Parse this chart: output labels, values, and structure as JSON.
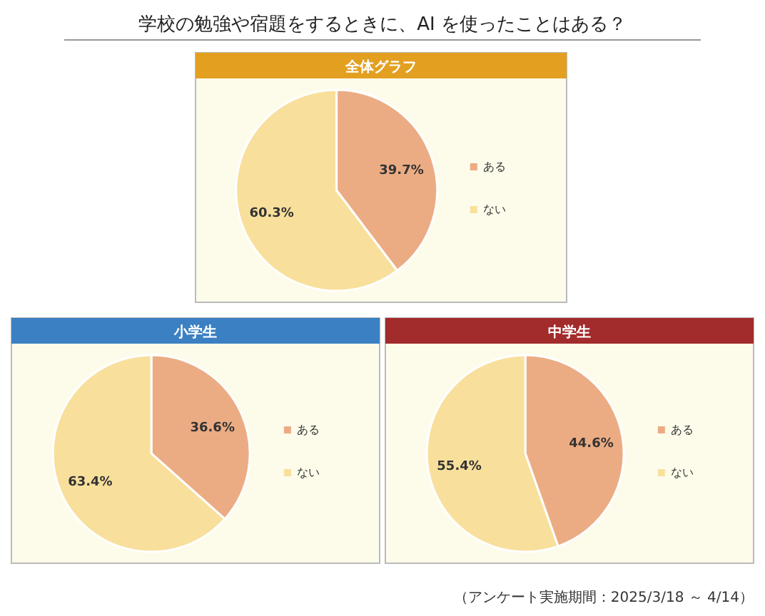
{
  "chart_data": [
    {
      "type": "other",
      "title": "学校の勉強や宿題をするときに、AI を使ったことはある？",
      "annotations": [
        "（アンケート実施期間：2025/3/18 ～ 4/14）"
      ]
    },
    {
      "type": "pie",
      "title": "全体グラフ",
      "categories": [
        "ある",
        "ない"
      ],
      "values": [
        39.7,
        60.3
      ],
      "colors": [
        "#ecac83",
        "#f8e09c"
      ],
      "value_labels": [
        "39.7%",
        "60.3%"
      ],
      "legend": "right"
    },
    {
      "type": "pie",
      "title": "小学生",
      "categories": [
        "ある",
        "ない"
      ],
      "values": [
        36.6,
        63.4
      ],
      "colors": [
        "#ecac83",
        "#f8e09c"
      ],
      "value_labels": [
        "36.6%",
        "63.4%"
      ],
      "legend": "right"
    },
    {
      "type": "pie",
      "title": "中学生",
      "categories": [
        "ある",
        "ない"
      ],
      "values": [
        44.6,
        55.4
      ],
      "colors": [
        "#ecac83",
        "#f8e09c"
      ],
      "value_labels": [
        "44.6%",
        "55.4%"
      ],
      "legend": "right"
    }
  ]
}
